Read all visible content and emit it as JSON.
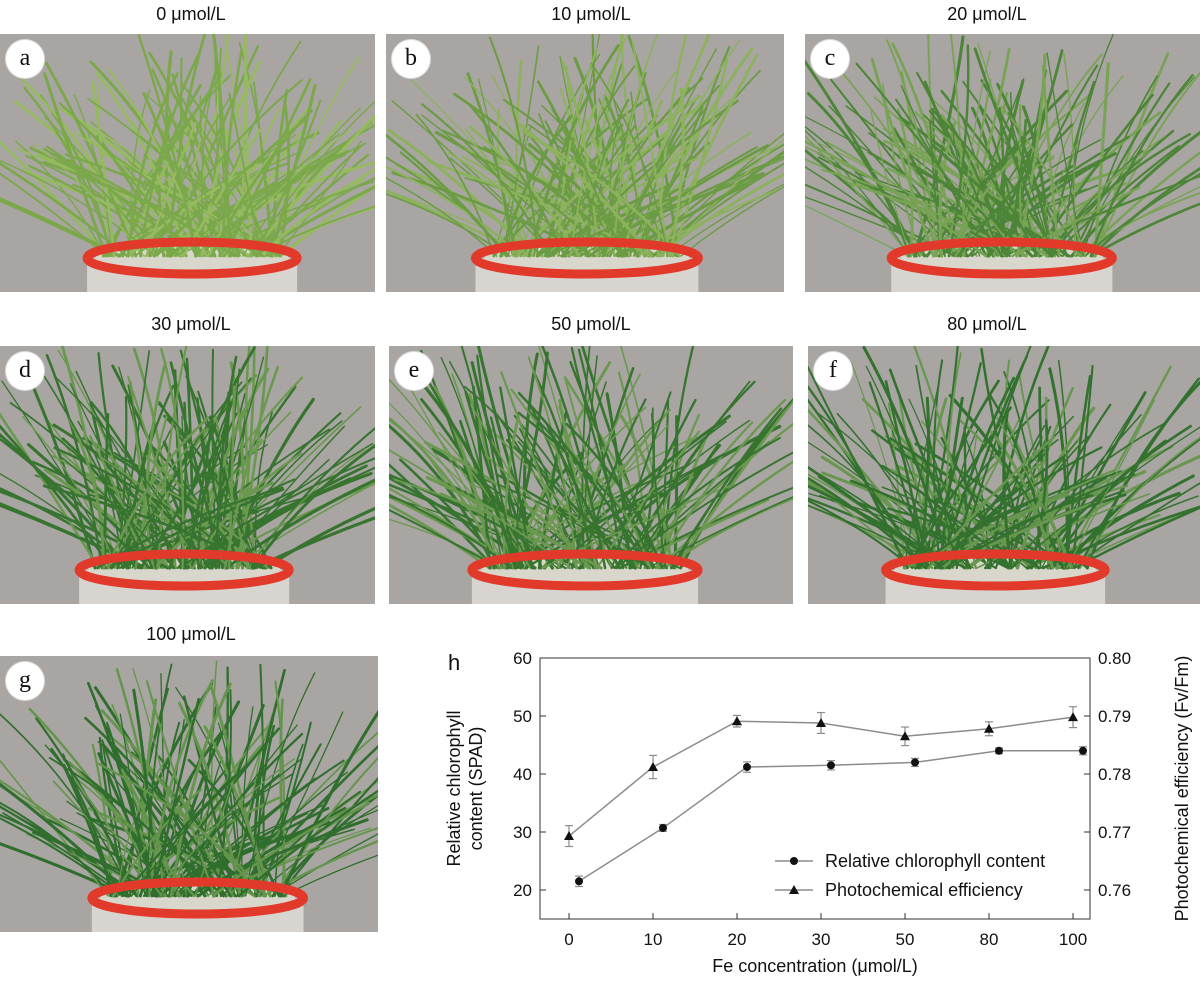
{
  "photo_panels": [
    {
      "letter": "a",
      "caption": "0 μmol/L"
    },
    {
      "letter": "b",
      "caption": "10 μmol/L"
    },
    {
      "letter": "c",
      "caption": "20 μmol/L"
    },
    {
      "letter": "d",
      "caption": "30 μmol/L"
    },
    {
      "letter": "e",
      "caption": "50 μmol/L"
    },
    {
      "letter": "f",
      "caption": "80 μmol/L"
    },
    {
      "letter": "g",
      "caption": "100 μmol/L"
    }
  ],
  "colors": {
    "photo_background": "#a9a5a3",
    "pot_rim": "#e23a2a",
    "grass_pale": "#7aa84a",
    "grass_dark": "#2f6e2c",
    "chart_line": "#8c8c8c",
    "marker": "#111111"
  },
  "chart_data": {
    "type": "line",
    "panel_letter": "h",
    "xlabel": "Fe concentration (μmol/L)",
    "ylabel_left": "Relative chlorophyll content (SPAD)",
    "ylabel_right": "Photochemical efficiency (Fv/Fm)",
    "categories": [
      "0",
      "10",
      "20",
      "30",
      "50",
      "80",
      "100"
    ],
    "ylim_left": [
      15,
      60
    ],
    "yticks_left": [
      20,
      30,
      40,
      50,
      60
    ],
    "ylim_right": [
      0.755,
      0.8
    ],
    "yticks_right": [
      "0.76",
      "0.77",
      "0.78",
      "0.79",
      "0.80"
    ],
    "legend_position": "bottom-right",
    "series": [
      {
        "name": "Relative chlorophyll content",
        "axis": "left",
        "marker": "circle",
        "values": [
          21.5,
          30.7,
          41.2,
          41.5,
          42.0,
          44.0,
          44.0
        ],
        "errors": [
          0.9,
          0.6,
          0.9,
          0.8,
          0.7,
          0.5,
          0.7
        ]
      },
      {
        "name": "Photochemical efficiency",
        "axis": "right",
        "marker": "triangle",
        "values": [
          0.7693,
          0.7812,
          0.7891,
          0.7888,
          0.7865,
          0.7878,
          0.7898
        ],
        "errors": [
          0.0018,
          0.002,
          0.001,
          0.0018,
          0.0016,
          0.0012,
          0.0018
        ]
      }
    ]
  }
}
